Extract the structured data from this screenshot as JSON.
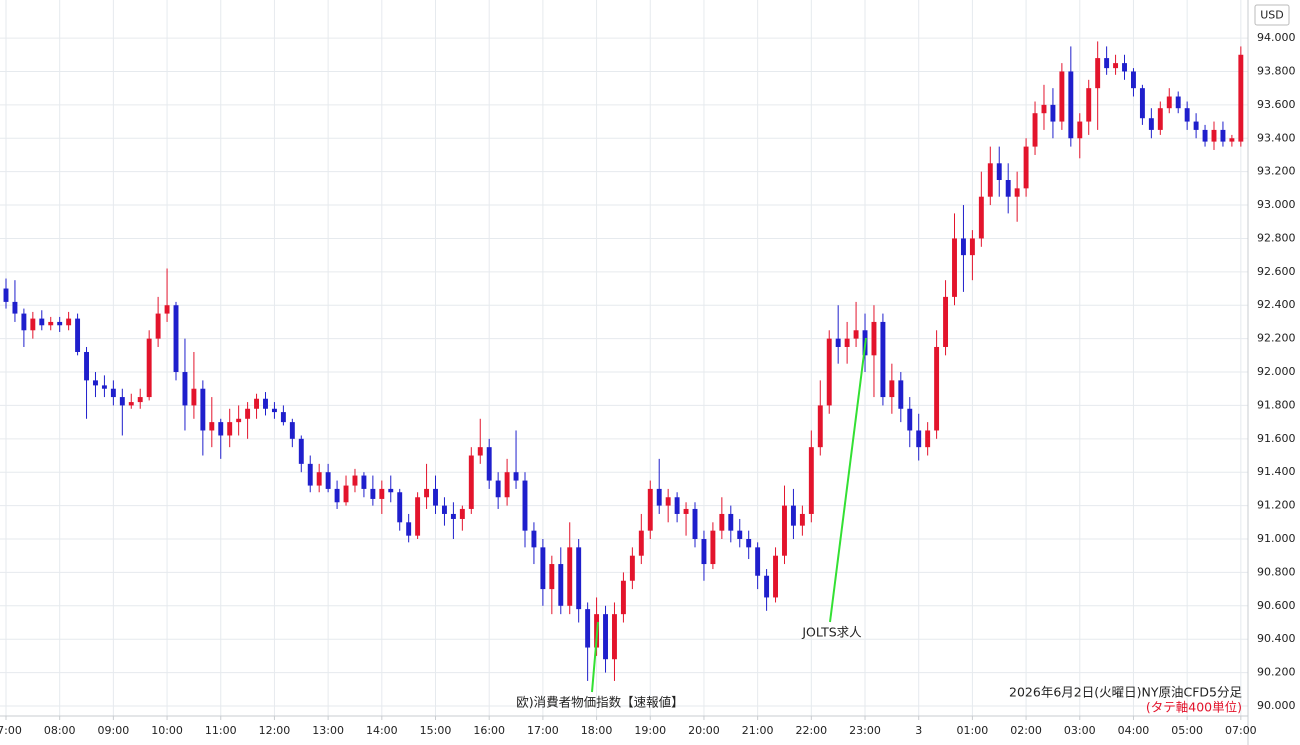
{
  "chart_data": {
    "type": "candlestick",
    "title": "2026年6月2日(火曜日)NY原油CFD5分足",
    "subtitle": "(タテ軸400単位)",
    "y_axis_label": "USD",
    "up_color": "#e3142c",
    "down_color": "#1f1fcc",
    "grid": true,
    "annotations": [
      {
        "text": "欧)消費者物価指数【速報値】",
        "color": "#33e033"
      },
      {
        "text": "JOLTS求人",
        "color": "#33e033"
      }
    ],
    "xlim": [
      -0.67,
      138.8
    ],
    "ylim": [
      89.94,
      94.228
    ],
    "xticks": [
      {
        "value": 0,
        "label": "07:00"
      },
      {
        "value": 6,
        "label": "08:00"
      },
      {
        "value": 12,
        "label": "09:00"
      },
      {
        "value": 18,
        "label": "10:00"
      },
      {
        "value": 24,
        "label": "11:00"
      },
      {
        "value": 30,
        "label": "12:00"
      },
      {
        "value": 36,
        "label": "13:00"
      },
      {
        "value": 42,
        "label": "14:00"
      },
      {
        "value": 48,
        "label": "15:00"
      },
      {
        "value": 54,
        "label": "16:00"
      },
      {
        "value": 60,
        "label": "17:00"
      },
      {
        "value": 66,
        "label": "18:00"
      },
      {
        "value": 72,
        "label": "19:00"
      },
      {
        "value": 78,
        "label": "20:00"
      },
      {
        "value": 84,
        "label": "21:00"
      },
      {
        "value": 90,
        "label": "22:00"
      },
      {
        "value": 96,
        "label": "23:00"
      },
      {
        "value": 102,
        "label": "3"
      },
      {
        "value": 108,
        "label": "01:00"
      },
      {
        "value": 114,
        "label": "02:00"
      },
      {
        "value": 120,
        "label": "03:00"
      },
      {
        "value": 126,
        "label": "04:00"
      },
      {
        "value": 132,
        "label": "05:00"
      },
      {
        "value": 138,
        "label": "07:00"
      }
    ],
    "yticks": [
      {
        "value": 90,
        "label": "90.000"
      },
      {
        "value": 90.2,
        "label": "90.200"
      },
      {
        "value": 90.4,
        "label": "90.400"
      },
      {
        "value": 90.6,
        "label": "90.600"
      },
      {
        "value": 90.8,
        "label": "90.800"
      },
      {
        "value": 91,
        "label": "91.000"
      },
      {
        "value": 91.2,
        "label": "91.200"
      },
      {
        "value": 91.4,
        "label": "91.400"
      },
      {
        "value": 91.6,
        "label": "91.600"
      },
      {
        "value": 91.8,
        "label": "91.800"
      },
      {
        "value": 92,
        "label": "92.000"
      },
      {
        "value": 92.2,
        "label": "92.200"
      },
      {
        "value": 92.4,
        "label": "92.400"
      },
      {
        "value": 92.6,
        "label": "92.600"
      },
      {
        "value": 92.8,
        "label": "92.800"
      },
      {
        "value": 93,
        "label": "93.000"
      },
      {
        "value": 93.2,
        "label": "93.200"
      },
      {
        "value": 93.4,
        "label": "93.400"
      },
      {
        "value": 93.6,
        "label": "93.600"
      },
      {
        "value": 93.8,
        "label": "93.800"
      },
      {
        "value": 94,
        "label": "94.000"
      }
    ],
    "open": [
      92.5,
      92.42,
      92.35,
      92.25,
      92.32,
      92.28,
      92.3,
      92.28,
      92.32,
      92.12,
      91.95,
      91.92,
      91.9,
      91.85,
      91.8,
      91.82,
      91.85,
      92.2,
      92.35,
      92.4,
      92.0,
      91.8,
      91.9,
      91.65,
      91.7,
      91.62,
      91.7,
      91.72,
      91.78,
      91.84,
      91.78,
      91.76,
      91.7,
      91.6,
      91.45,
      91.32,
      91.4,
      91.3,
      91.22,
      91.32,
      91.38,
      91.3,
      91.24,
      91.3,
      91.28,
      91.1,
      91.02,
      91.25,
      91.3,
      91.2,
      91.15,
      91.12,
      91.18,
      91.5,
      91.55,
      91.35,
      91.25,
      91.4,
      91.35,
      91.05,
      90.95,
      90.7,
      90.85,
      90.6,
      90.95,
      90.58,
      90.35,
      90.55,
      90.28,
      90.55,
      90.75,
      90.9,
      91.05,
      91.3,
      91.2,
      91.25,
      91.15,
      91.18,
      91.0,
      90.85,
      91.05,
      91.15,
      91.05,
      91.0,
      90.95,
      90.78,
      90.65,
      90.9,
      91.2,
      91.08,
      91.15,
      91.55,
      91.8,
      92.2,
      92.15,
      92.2,
      92.25,
      92.1,
      92.3,
      91.85,
      91.95,
      91.78,
      91.65,
      91.55,
      91.65,
      92.15,
      92.45,
      92.8,
      92.7,
      92.8,
      93.05,
      93.25,
      93.15,
      93.05,
      93.1,
      93.35,
      93.55,
      93.6,
      93.5,
      93.8,
      93.4,
      93.5,
      93.7,
      93.88,
      93.82,
      93.85,
      93.8,
      93.7,
      93.52,
      93.45,
      93.58,
      93.65,
      93.58,
      93.5,
      93.45,
      93.38,
      93.45,
      93.38,
      93.38
    ],
    "high": [
      92.56,
      92.55,
      92.38,
      92.36,
      92.37,
      92.33,
      92.33,
      92.36,
      92.35,
      92.15,
      92.0,
      91.98,
      91.95,
      91.9,
      91.87,
      91.9,
      92.25,
      92.45,
      92.62,
      92.42,
      92.2,
      92.12,
      91.95,
      91.85,
      91.72,
      91.78,
      91.8,
      91.82,
      91.87,
      91.88,
      91.82,
      91.8,
      91.72,
      91.62,
      91.5,
      91.45,
      91.45,
      91.35,
      91.38,
      91.42,
      91.4,
      91.38,
      91.35,
      91.38,
      91.3,
      91.15,
      91.28,
      91.45,
      91.38,
      91.25,
      91.22,
      91.2,
      91.55,
      91.72,
      91.6,
      91.4,
      91.48,
      91.65,
      91.4,
      91.1,
      91.0,
      90.9,
      90.95,
      91.1,
      91.0,
      90.62,
      90.65,
      90.6,
      90.62,
      90.8,
      90.95,
      91.15,
      91.35,
      91.48,
      91.3,
      91.28,
      91.22,
      91.22,
      91.05,
      91.1,
      91.25,
      91.2,
      91.12,
      91.05,
      90.98,
      90.82,
      90.95,
      91.32,
      91.3,
      91.2,
      91.65,
      91.95,
      92.25,
      92.4,
      92.3,
      92.42,
      92.35,
      92.4,
      92.35,
      92.05,
      92.0,
      91.85,
      91.75,
      91.7,
      92.25,
      92.55,
      92.95,
      93.0,
      92.85,
      93.2,
      93.35,
      93.35,
      93.25,
      93.2,
      93.4,
      93.62,
      93.72,
      93.7,
      93.85,
      93.95,
      93.55,
      93.75,
      93.98,
      93.95,
      93.9,
      93.9,
      93.82,
      93.72,
      93.58,
      93.62,
      93.7,
      93.68,
      93.62,
      93.55,
      93.48,
      93.5,
      93.5,
      93.42,
      93.95
    ],
    "low": [
      92.38,
      92.3,
      92.15,
      92.2,
      92.25,
      92.25,
      92.24,
      92.25,
      92.1,
      91.72,
      91.85,
      91.85,
      91.8,
      91.62,
      91.78,
      91.78,
      91.83,
      92.15,
      92.3,
      91.95,
      91.65,
      91.72,
      91.5,
      91.55,
      91.48,
      91.55,
      91.62,
      91.6,
      91.72,
      91.74,
      91.72,
      91.68,
      91.55,
      91.4,
      91.28,
      91.28,
      91.28,
      91.18,
      91.2,
      91.28,
      91.25,
      91.2,
      91.15,
      91.22,
      91.05,
      90.98,
      91.0,
      91.18,
      91.15,
      91.08,
      91.0,
      91.05,
      91.15,
      91.45,
      91.3,
      91.18,
      91.2,
      91.3,
      90.95,
      90.85,
      90.6,
      90.55,
      90.55,
      90.55,
      90.5,
      90.15,
      90.3,
      90.2,
      90.15,
      90.5,
      90.7,
      90.85,
      91.0,
      91.15,
      91.1,
      91.1,
      91.02,
      90.95,
      90.75,
      90.82,
      91.0,
      90.98,
      90.95,
      90.88,
      90.7,
      90.57,
      90.62,
      90.85,
      91.0,
      91.02,
      91.1,
      91.5,
      91.75,
      92.05,
      92.05,
      92.15,
      92.0,
      91.85,
      91.8,
      91.75,
      91.7,
      91.55,
      91.47,
      91.5,
      91.6,
      92.1,
      92.4,
      92.48,
      92.55,
      92.75,
      93.0,
      93.05,
      92.95,
      92.9,
      93.05,
      93.3,
      93.45,
      93.4,
      93.45,
      93.35,
      93.28,
      93.42,
      93.45,
      93.78,
      93.78,
      93.75,
      93.65,
      93.48,
      93.4,
      93.42,
      93.55,
      93.55,
      93.45,
      93.4,
      93.35,
      93.33,
      93.35,
      93.35,
      93.35
    ],
    "close": [
      92.42,
      92.35,
      92.25,
      92.32,
      92.28,
      92.3,
      92.28,
      92.32,
      92.12,
      91.95,
      91.92,
      91.9,
      91.85,
      91.8,
      91.82,
      91.85,
      92.2,
      92.35,
      92.4,
      92.0,
      91.8,
      91.9,
      91.65,
      91.7,
      91.62,
      91.7,
      91.72,
      91.78,
      91.84,
      91.78,
      91.76,
      91.7,
      91.6,
      91.45,
      91.32,
      91.4,
      91.3,
      91.22,
      91.32,
      91.38,
      91.3,
      91.24,
      91.3,
      91.28,
      91.1,
      91.02,
      91.25,
      91.3,
      91.2,
      91.15,
      91.12,
      91.18,
      91.5,
      91.55,
      91.35,
      91.25,
      91.4,
      91.35,
      91.05,
      90.95,
      90.7,
      90.85,
      90.6,
      90.95,
      90.58,
      90.35,
      90.55,
      90.28,
      90.55,
      90.75,
      90.9,
      91.05,
      91.3,
      91.2,
      91.25,
      91.15,
      91.18,
      91.0,
      90.85,
      91.05,
      91.15,
      91.05,
      91.0,
      90.95,
      90.78,
      90.65,
      90.9,
      91.2,
      91.08,
      91.15,
      91.55,
      91.8,
      92.2,
      92.15,
      92.2,
      92.25,
      92.1,
      92.3,
      91.85,
      91.95,
      91.78,
      91.65,
      91.55,
      91.65,
      92.15,
      92.45,
      92.8,
      92.7,
      92.8,
      93.05,
      93.25,
      93.15,
      93.05,
      93.1,
      93.35,
      93.55,
      93.6,
      93.5,
      93.8,
      93.4,
      93.5,
      93.7,
      93.88,
      93.82,
      93.85,
      93.8,
      93.7,
      93.52,
      93.45,
      93.58,
      93.65,
      93.58,
      93.5,
      93.45,
      93.38,
      93.45,
      93.38,
      93.4,
      93.9
    ]
  }
}
